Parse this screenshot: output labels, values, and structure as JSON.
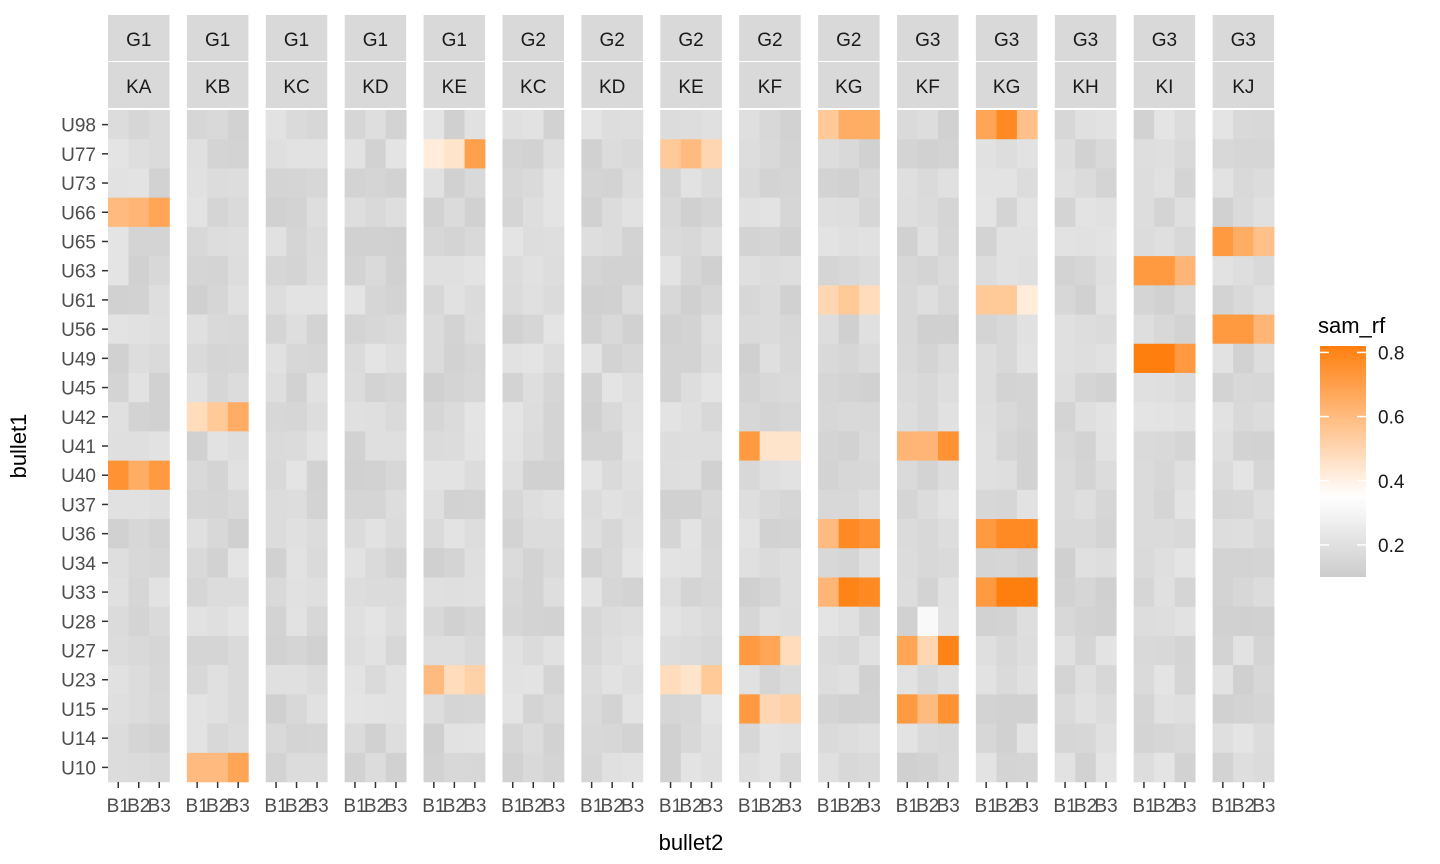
{
  "chart_data": {
    "type": "heatmap",
    "xlabel": "bullet2",
    "ylabel": "bullet1",
    "x_categories": [
      "B1",
      "B2",
      "B3"
    ],
    "y_categories": [
      "U98",
      "U77",
      "U73",
      "U66",
      "U65",
      "U63",
      "U61",
      "U56",
      "U49",
      "U45",
      "U42",
      "U41",
      "U40",
      "U37",
      "U36",
      "U34",
      "U33",
      "U28",
      "U27",
      "U23",
      "U15",
      "U14",
      "U10"
    ],
    "facets": [
      {
        "group": "G1",
        "key": "KA"
      },
      {
        "group": "G1",
        "key": "KB"
      },
      {
        "group": "G1",
        "key": "KC"
      },
      {
        "group": "G1",
        "key": "KD"
      },
      {
        "group": "G1",
        "key": "KE"
      },
      {
        "group": "G2",
        "key": "KC"
      },
      {
        "group": "G2",
        "key": "KD"
      },
      {
        "group": "G2",
        "key": "KE"
      },
      {
        "group": "G2",
        "key": "KF"
      },
      {
        "group": "G2",
        "key": "KG"
      },
      {
        "group": "G3",
        "key": "KF"
      },
      {
        "group": "G3",
        "key": "KG"
      },
      {
        "group": "G3",
        "key": "KH"
      },
      {
        "group": "G3",
        "key": "KI"
      },
      {
        "group": "G3",
        "key": "KJ"
      }
    ],
    "highlights": [
      {
        "facet": 0,
        "row": "U66",
        "values": [
          0.6,
          0.62,
          0.68
        ]
      },
      {
        "facet": 0,
        "row": "U40",
        "values": [
          0.75,
          0.65,
          0.72
        ]
      },
      {
        "facet": 1,
        "row": "U42",
        "values": [
          0.48,
          0.55,
          0.65
        ]
      },
      {
        "facet": 1,
        "row": "U10",
        "values": [
          0.6,
          0.6,
          0.68
        ]
      },
      {
        "facet": 4,
        "row": "U77",
        "values": [
          0.42,
          0.45,
          0.7
        ]
      },
      {
        "facet": 4,
        "row": "U23",
        "values": [
          0.6,
          0.48,
          0.52
        ]
      },
      {
        "facet": 7,
        "row": "U77",
        "values": [
          0.55,
          0.6,
          0.5
        ]
      },
      {
        "facet": 7,
        "row": "U23",
        "values": [
          0.48,
          0.45,
          0.55
        ]
      },
      {
        "facet": 8,
        "row": "U41",
        "values": [
          0.72,
          0.45,
          0.45
        ]
      },
      {
        "facet": 8,
        "row": "U27",
        "values": [
          0.72,
          0.68,
          0.48
        ]
      },
      {
        "facet": 8,
        "row": "U15",
        "values": [
          0.72,
          0.5,
          0.52
        ]
      },
      {
        "facet": 9,
        "row": "U98",
        "values": [
          0.55,
          0.65,
          0.65
        ]
      },
      {
        "facet": 9,
        "row": "U61",
        "values": [
          0.5,
          0.55,
          0.48
        ]
      },
      {
        "facet": 9,
        "row": "U36",
        "values": [
          0.6,
          0.78,
          0.75
        ]
      },
      {
        "facet": 9,
        "row": "U33",
        "values": [
          0.62,
          0.8,
          0.78
        ]
      },
      {
        "facet": 10,
        "row": "U41",
        "values": [
          0.62,
          0.62,
          0.75
        ]
      },
      {
        "facet": 10,
        "row": "U28",
        "values": [
          null,
          0.32,
          null
        ]
      },
      {
        "facet": 10,
        "row": "U27",
        "values": [
          0.68,
          0.5,
          0.8
        ]
      },
      {
        "facet": 10,
        "row": "U15",
        "values": [
          0.72,
          0.6,
          0.75
        ]
      },
      {
        "facet": 11,
        "row": "U98",
        "values": [
          0.68,
          0.78,
          0.58
        ]
      },
      {
        "facet": 11,
        "row": "U61",
        "values": [
          0.55,
          0.55,
          0.42
        ]
      },
      {
        "facet": 11,
        "row": "U36",
        "values": [
          0.72,
          0.78,
          0.78
        ]
      },
      {
        "facet": 11,
        "row": "U33",
        "values": [
          0.72,
          0.82,
          0.82
        ]
      },
      {
        "facet": 13,
        "row": "U63",
        "values": [
          0.72,
          0.72,
          0.62
        ]
      },
      {
        "facet": 13,
        "row": "U49",
        "values": [
          0.82,
          0.85,
          0.72
        ]
      },
      {
        "facet": 14,
        "row": "U65",
        "values": [
          0.72,
          0.65,
          0.58
        ]
      },
      {
        "facet": 14,
        "row": "U56",
        "values": [
          0.72,
          0.72,
          0.62
        ]
      }
    ],
    "background_value_range": [
      0.12,
      0.22
    ],
    "legend": {
      "title": "sam_rf",
      "ticks": [
        "0.2",
        "0.4",
        "0.6",
        "0.8"
      ],
      "tick_values": [
        0.2,
        0.4,
        0.6,
        0.8
      ],
      "range": [
        0.1,
        0.82
      ],
      "colors": {
        "low": "#cccccc",
        "mid": "#ffffff",
        "high": "#ff7f0e"
      },
      "midpoint": 0.35,
      "position": "right"
    }
  }
}
